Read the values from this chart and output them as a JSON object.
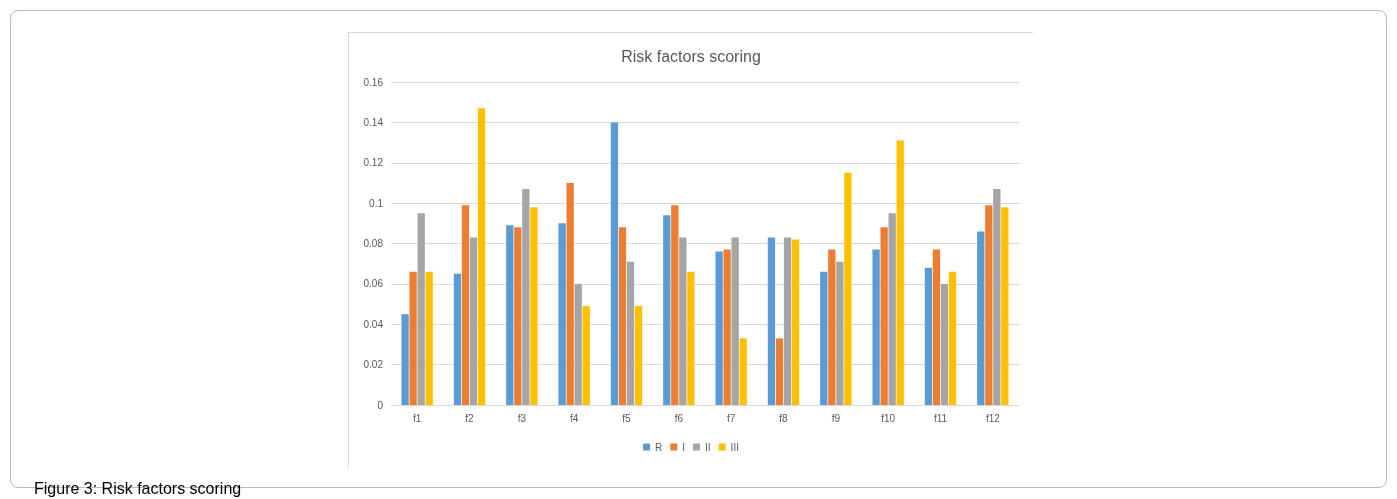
{
  "chart_data": {
    "type": "bar",
    "title": "Risk factors scoring",
    "categories": [
      "f1",
      "f2",
      "f3",
      "f4",
      "f5",
      "f6",
      "f7",
      "f8",
      "f9",
      "f10",
      "f11",
      "f12"
    ],
    "series": [
      {
        "name": "R",
        "color": "#5b9bd5",
        "values": [
          0.045,
          0.065,
          0.089,
          0.09,
          0.14,
          0.094,
          0.076,
          0.083,
          0.066,
          0.077,
          0.068,
          0.086
        ]
      },
      {
        "name": "I",
        "color": "#ed7d31",
        "values": [
          0.066,
          0.099,
          0.088,
          0.11,
          0.088,
          0.099,
          0.077,
          0.033,
          0.077,
          0.088,
          0.077,
          0.099
        ]
      },
      {
        "name": "II",
        "color": "#a5a5a5",
        "values": [
          0.095,
          0.083,
          0.107,
          0.06,
          0.071,
          0.083,
          0.083,
          0.083,
          0.071,
          0.095,
          0.06,
          0.107
        ]
      },
      {
        "name": "III",
        "color": "#ffc000",
        "values": [
          0.066,
          0.147,
          0.098,
          0.049,
          0.049,
          0.066,
          0.033,
          0.082,
          0.115,
          0.131,
          0.066,
          0.098
        ]
      }
    ],
    "ylim": [
      0,
      0.16
    ],
    "yticks": [
      0,
      0.02,
      0.04,
      0.06,
      0.08,
      0.1,
      0.12,
      0.14,
      0.16
    ],
    "grid": "y",
    "legend": "bottom",
    "annotations": [
      "Figure 3: Risk factors scoring"
    ]
  }
}
